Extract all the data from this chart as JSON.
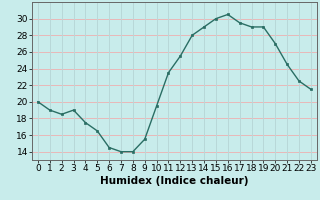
{
  "x": [
    0,
    1,
    2,
    3,
    4,
    5,
    6,
    7,
    8,
    9,
    10,
    11,
    12,
    13,
    14,
    15,
    16,
    17,
    18,
    19,
    20,
    21,
    22,
    23
  ],
  "y": [
    20,
    19,
    18.5,
    19,
    17.5,
    16.5,
    14.5,
    14,
    14,
    15.5,
    19.5,
    23.5,
    25.5,
    28,
    29,
    30,
    30.5,
    29.5,
    29,
    29,
    27,
    24.5,
    22.5,
    21.5
  ],
  "line_color": "#2a6e64",
  "marker_color": "#2a6e64",
  "bg_color": "#c8eceb",
  "grid_color_h": "#e8b8b8",
  "grid_color_v": "#b8d8d8",
  "title": "",
  "xlabel": "Humidex (Indice chaleur)",
  "ylabel": "",
  "ylim": [
    13,
    32
  ],
  "xlim": [
    -0.5,
    23.5
  ],
  "yticks": [
    14,
    16,
    18,
    20,
    22,
    24,
    26,
    28,
    30
  ],
  "xticks": [
    0,
    1,
    2,
    3,
    4,
    5,
    6,
    7,
    8,
    9,
    10,
    11,
    12,
    13,
    14,
    15,
    16,
    17,
    18,
    19,
    20,
    21,
    22,
    23
  ],
  "xtick_labels": [
    "0",
    "1",
    "2",
    "3",
    "4",
    "5",
    "6",
    "7",
    "8",
    "9",
    "10",
    "11",
    "12",
    "13",
    "14",
    "15",
    "16",
    "17",
    "18",
    "19",
    "20",
    "21",
    "22",
    "23"
  ],
  "xlabel_fontsize": 7.5,
  "tick_fontsize": 6.5
}
